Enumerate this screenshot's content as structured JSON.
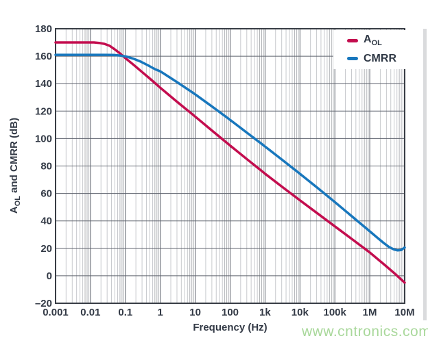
{
  "chart_data": {
    "type": "line",
    "title": "",
    "xlabel": "Frequency (Hz)",
    "ylabel_parts": {
      "main": "A",
      "sub": "OL",
      "rest": " and CMRR (dB)"
    },
    "x_scale": "log",
    "xlim_log10": [
      -3,
      7
    ],
    "ylim": [
      -20,
      180
    ],
    "x_tick_log10": [
      -3,
      -2,
      -1,
      0,
      1,
      2,
      3,
      4,
      5,
      6,
      7
    ],
    "x_tick_labels": [
      "0.001",
      "0.01",
      "0.1",
      "1",
      "10",
      "100",
      "1k",
      "10k",
      "100k",
      "1M",
      "10M"
    ],
    "y_ticks": [
      180,
      160,
      140,
      120,
      100,
      80,
      60,
      40,
      20,
      0,
      -20
    ],
    "grid": "on-with-log-minors",
    "legend_position": "top-right",
    "series": [
      {
        "name": "AOL",
        "label_main": "A",
        "label_sub": "OL",
        "color": "#c30d4e",
        "points_log10f_db": [
          [
            -3,
            170
          ],
          [
            -2.2,
            170
          ],
          [
            -1.9,
            170
          ],
          [
            -1.75,
            169.7
          ],
          [
            -1.6,
            169
          ],
          [
            -1.45,
            167.6
          ],
          [
            -1.3,
            164.9
          ],
          [
            -1.15,
            161.9
          ],
          [
            -1.0,
            158.6
          ],
          [
            -0.75,
            153.4
          ],
          [
            -0.5,
            148
          ],
          [
            -0.25,
            142.6
          ],
          [
            0,
            137
          ],
          [
            0.5,
            126.4
          ],
          [
            1,
            116
          ],
          [
            1.5,
            105.4
          ],
          [
            2,
            94.9
          ],
          [
            2.5,
            84.6
          ],
          [
            3,
            74.4
          ],
          [
            3.5,
            64.6
          ],
          [
            4,
            55
          ],
          [
            4.5,
            45.5
          ],
          [
            5,
            36
          ],
          [
            5.5,
            26.6
          ],
          [
            6,
            17
          ],
          [
            6.4,
            8.5
          ],
          [
            6.7,
            2
          ],
          [
            7,
            -5
          ]
        ]
      },
      {
        "name": "CMRR",
        "label_main": "CMRR",
        "label_sub": "",
        "color": "#1877bd",
        "points_log10f_db": [
          [
            -3,
            161
          ],
          [
            -1.6,
            161
          ],
          [
            -1.35,
            160.9
          ],
          [
            -1.15,
            160.5
          ],
          [
            -0.95,
            159.6
          ],
          [
            -0.75,
            158
          ],
          [
            -0.55,
            155.9
          ],
          [
            -0.35,
            153.3
          ],
          [
            -0.15,
            150.5
          ],
          [
            0,
            149
          ],
          [
            0.25,
            144.9
          ],
          [
            0.5,
            140.8
          ],
          [
            1,
            132.2
          ],
          [
            1.5,
            123
          ],
          [
            2,
            113.6
          ],
          [
            2.5,
            103.9
          ],
          [
            3,
            94.2
          ],
          [
            3.5,
            84.3
          ],
          [
            4,
            74.3
          ],
          [
            4.5,
            64.1
          ],
          [
            5,
            53.7
          ],
          [
            5.5,
            43.1
          ],
          [
            6,
            32.4
          ],
          [
            6.2,
            28.1
          ],
          [
            6.4,
            23.9
          ],
          [
            6.55,
            21
          ],
          [
            6.7,
            19.1
          ],
          [
            6.8,
            18.5
          ],
          [
            6.9,
            18.8
          ],
          [
            7,
            20.6
          ]
        ]
      }
    ],
    "colors": {
      "border": "#383d45",
      "major_grid": "#5c616b",
      "minor_grid": "#c7c9cd",
      "minor_grid_dense": "#b2b4b8",
      "tick_text": "#333a46"
    }
  },
  "watermark": {
    "text": "www.cntronics.com",
    "color": "#a9d89b"
  }
}
